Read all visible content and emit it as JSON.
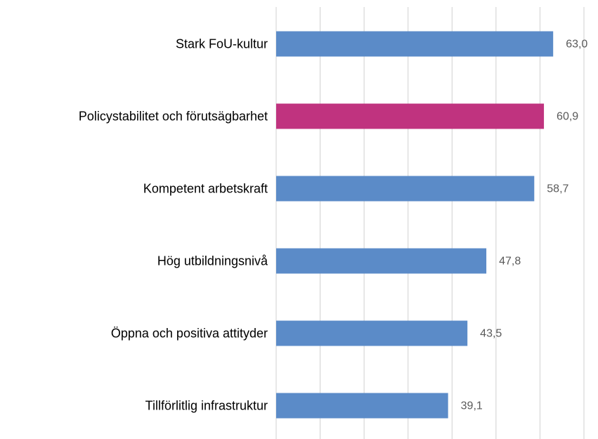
{
  "chart_data": {
    "type": "bar",
    "orientation": "horizontal",
    "categories": [
      "Stark FoU-kultur",
      "Policystabilitet och förutsägbarhet",
      "Kompetent arbetskraft",
      "Hög utbildningsnivå",
      "Öppna och positiva attityder",
      "Tillförlitlig infrastruktur"
    ],
    "values": [
      63.0,
      60.9,
      58.7,
      47.8,
      43.5,
      39.1
    ],
    "value_labels": [
      "63,0",
      "60,9",
      "58,7",
      "47,8",
      "43,5",
      "39,1"
    ],
    "colors": [
      "#5b8bc8",
      "#c0337f",
      "#5b8bc8",
      "#5b8bc8",
      "#5b8bc8",
      "#5b8bc8"
    ],
    "xlim": [
      0,
      70
    ],
    "xticks": [
      0,
      10,
      20,
      30,
      40,
      50,
      60,
      70
    ],
    "grid": true
  }
}
